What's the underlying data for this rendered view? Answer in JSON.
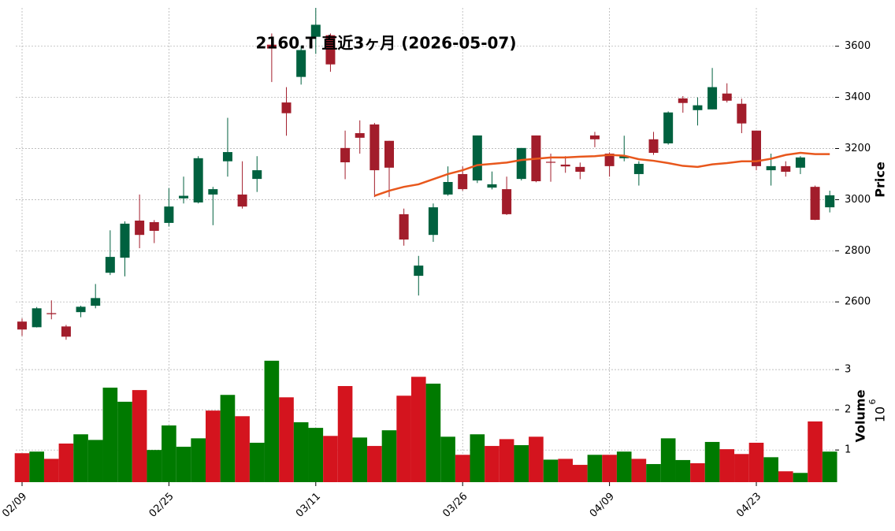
{
  "chart_data": {
    "type": "candlestick",
    "title": "2160.T  直近3ヶ月 (2026-05-07)",
    "categories": [
      "02/09",
      null,
      null,
      null,
      null,
      null,
      null,
      null,
      null,
      null,
      "02/25",
      null,
      null,
      null,
      null,
      null,
      null,
      null,
      null,
      null,
      "03/11",
      null,
      null,
      null,
      null,
      null,
      null,
      null,
      null,
      null,
      "03/26",
      null,
      null,
      null,
      null,
      null,
      null,
      null,
      null,
      null,
      "04/09",
      null,
      null,
      null,
      null,
      null,
      null,
      null,
      null,
      null,
      "04/23",
      null,
      null,
      null,
      null,
      null
    ],
    "open": [
      2523,
      2501,
      2556,
      2504,
      2560,
      2585,
      2714,
      2773,
      2918,
      2912,
      2909,
      3005,
      2989,
      3020,
      3150,
      3020,
      3081,
      3606,
      3380,
      3480,
      3637,
      3643,
      3202,
      3260,
      3294,
      3230,
      2943,
      2702,
      2862,
      3020,
      3100,
      3075,
      3047,
      3041,
      3081,
      3251,
      3148,
      3137,
      3128,
      3251,
      3180,
      3162,
      3100,
      3236,
      3220,
      3396,
      3350,
      3353,
      3415,
      3375,
      3270,
      3115,
      3131,
      3125,
      3050,
      2970
    ],
    "high": [
      2535,
      2580,
      2606,
      2510,
      2585,
      2670,
      2880,
      2915,
      3020,
      2920,
      3045,
      3090,
      3170,
      3050,
      3320,
      3150,
      3170,
      3650,
      3440,
      3600,
      3750,
      3650,
      3270,
      3310,
      3300,
      3230,
      2965,
      2780,
      2985,
      3130,
      3130,
      3251,
      3110,
      3090,
      3202,
      3251,
      3180,
      3170,
      3145,
      3265,
      3185,
      3250,
      3150,
      3265,
      3345,
      3405,
      3400,
      3515,
      3455,
      3395,
      3270,
      3180,
      3150,
      3170,
      3055,
      3035
    ],
    "low": [
      2467,
      2500,
      2532,
      2452,
      2540,
      2575,
      2705,
      2700,
      2810,
      2830,
      2895,
      2985,
      2985,
      2900,
      3090,
      2965,
      3030,
      3460,
      3250,
      3450,
      3570,
      3500,
      3080,
      3180,
      3010,
      3010,
      2820,
      2625,
      2835,
      3015,
      3035,
      3065,
      3040,
      2940,
      3075,
      3068,
      3070,
      3105,
      3080,
      3205,
      3090,
      3150,
      3055,
      3175,
      3215,
      3340,
      3290,
      3353,
      3380,
      3260,
      3115,
      3055,
      3090,
      3100,
      2920,
      2950
    ],
    "close": [
      2492,
      2575,
      2552,
      2464,
      2581,
      2615,
      2776,
      2906,
      2862,
      2878,
      2973,
      3015,
      3162,
      3041,
      3186,
      2973,
      3115,
      3591,
      3338,
      3585,
      3684,
      3529,
      3146,
      3242,
      3115,
      3125,
      2844,
      2742,
      2970,
      3069,
      3041,
      3251,
      3060,
      2943,
      3202,
      3072,
      3145,
      3130,
      3109,
      3236,
      3131,
      3171,
      3140,
      3183,
      3341,
      3378,
      3369,
      3440,
      3387,
      3298,
      3131,
      3131,
      3109,
      3165,
      2921,
      3017
    ],
    "up_color": "#00613f",
    "down_color": "#a21d2b",
    "ma": {
      "color": "#e8571c",
      "values": [
        null,
        null,
        null,
        null,
        null,
        null,
        null,
        null,
        null,
        null,
        null,
        null,
        null,
        null,
        null,
        null,
        null,
        null,
        null,
        null,
        null,
        null,
        null,
        null,
        3015,
        3035,
        3050,
        3060,
        3080,
        3100,
        3115,
        3135,
        3140,
        3145,
        3155,
        3160,
        3165,
        3165,
        3168,
        3170,
        3175,
        3172,
        3158,
        3152,
        3143,
        3132,
        3128,
        3138,
        3143,
        3150,
        3150,
        3160,
        3175,
        3183,
        3178,
        3178
      ]
    },
    "ylim": [
      2425,
      3750
    ],
    "yticks": [
      2600,
      2800,
      3000,
      3200,
      3400,
      3600
    ],
    "ylabel": "Price",
    "volume": [
      0.92,
      0.96,
      0.78,
      1.16,
      1.39,
      1.25,
      2.55,
      2.2,
      2.49,
      1.0,
      1.61,
      1.08,
      1.29,
      1.98,
      2.37,
      1.84,
      1.18,
      3.22,
      2.31,
      1.69,
      1.55,
      1.35,
      2.59,
      1.31,
      1.1,
      1.49,
      2.35,
      2.82,
      2.65,
      1.33,
      0.88,
      1.39,
      1.1,
      1.27,
      1.12,
      1.33,
      0.76,
      0.78,
      0.63,
      0.88,
      0.88,
      0.96,
      0.78,
      0.65,
      1.29,
      0.75,
      0.67,
      1.2,
      1.02,
      0.9,
      1.18,
      0.82,
      0.47,
      0.43,
      1.71,
      0.96
    ],
    "volume_up_color": "#007a00",
    "volume_down_color": "#d4141e",
    "volume_ylim": [
      0.2,
      3.57
    ],
    "volume_yticks": [
      1,
      2,
      3
    ],
    "volume_label": "Volume",
    "volume_scale_base": "10",
    "volume_scale_exponent": "6",
    "grid": true
  }
}
